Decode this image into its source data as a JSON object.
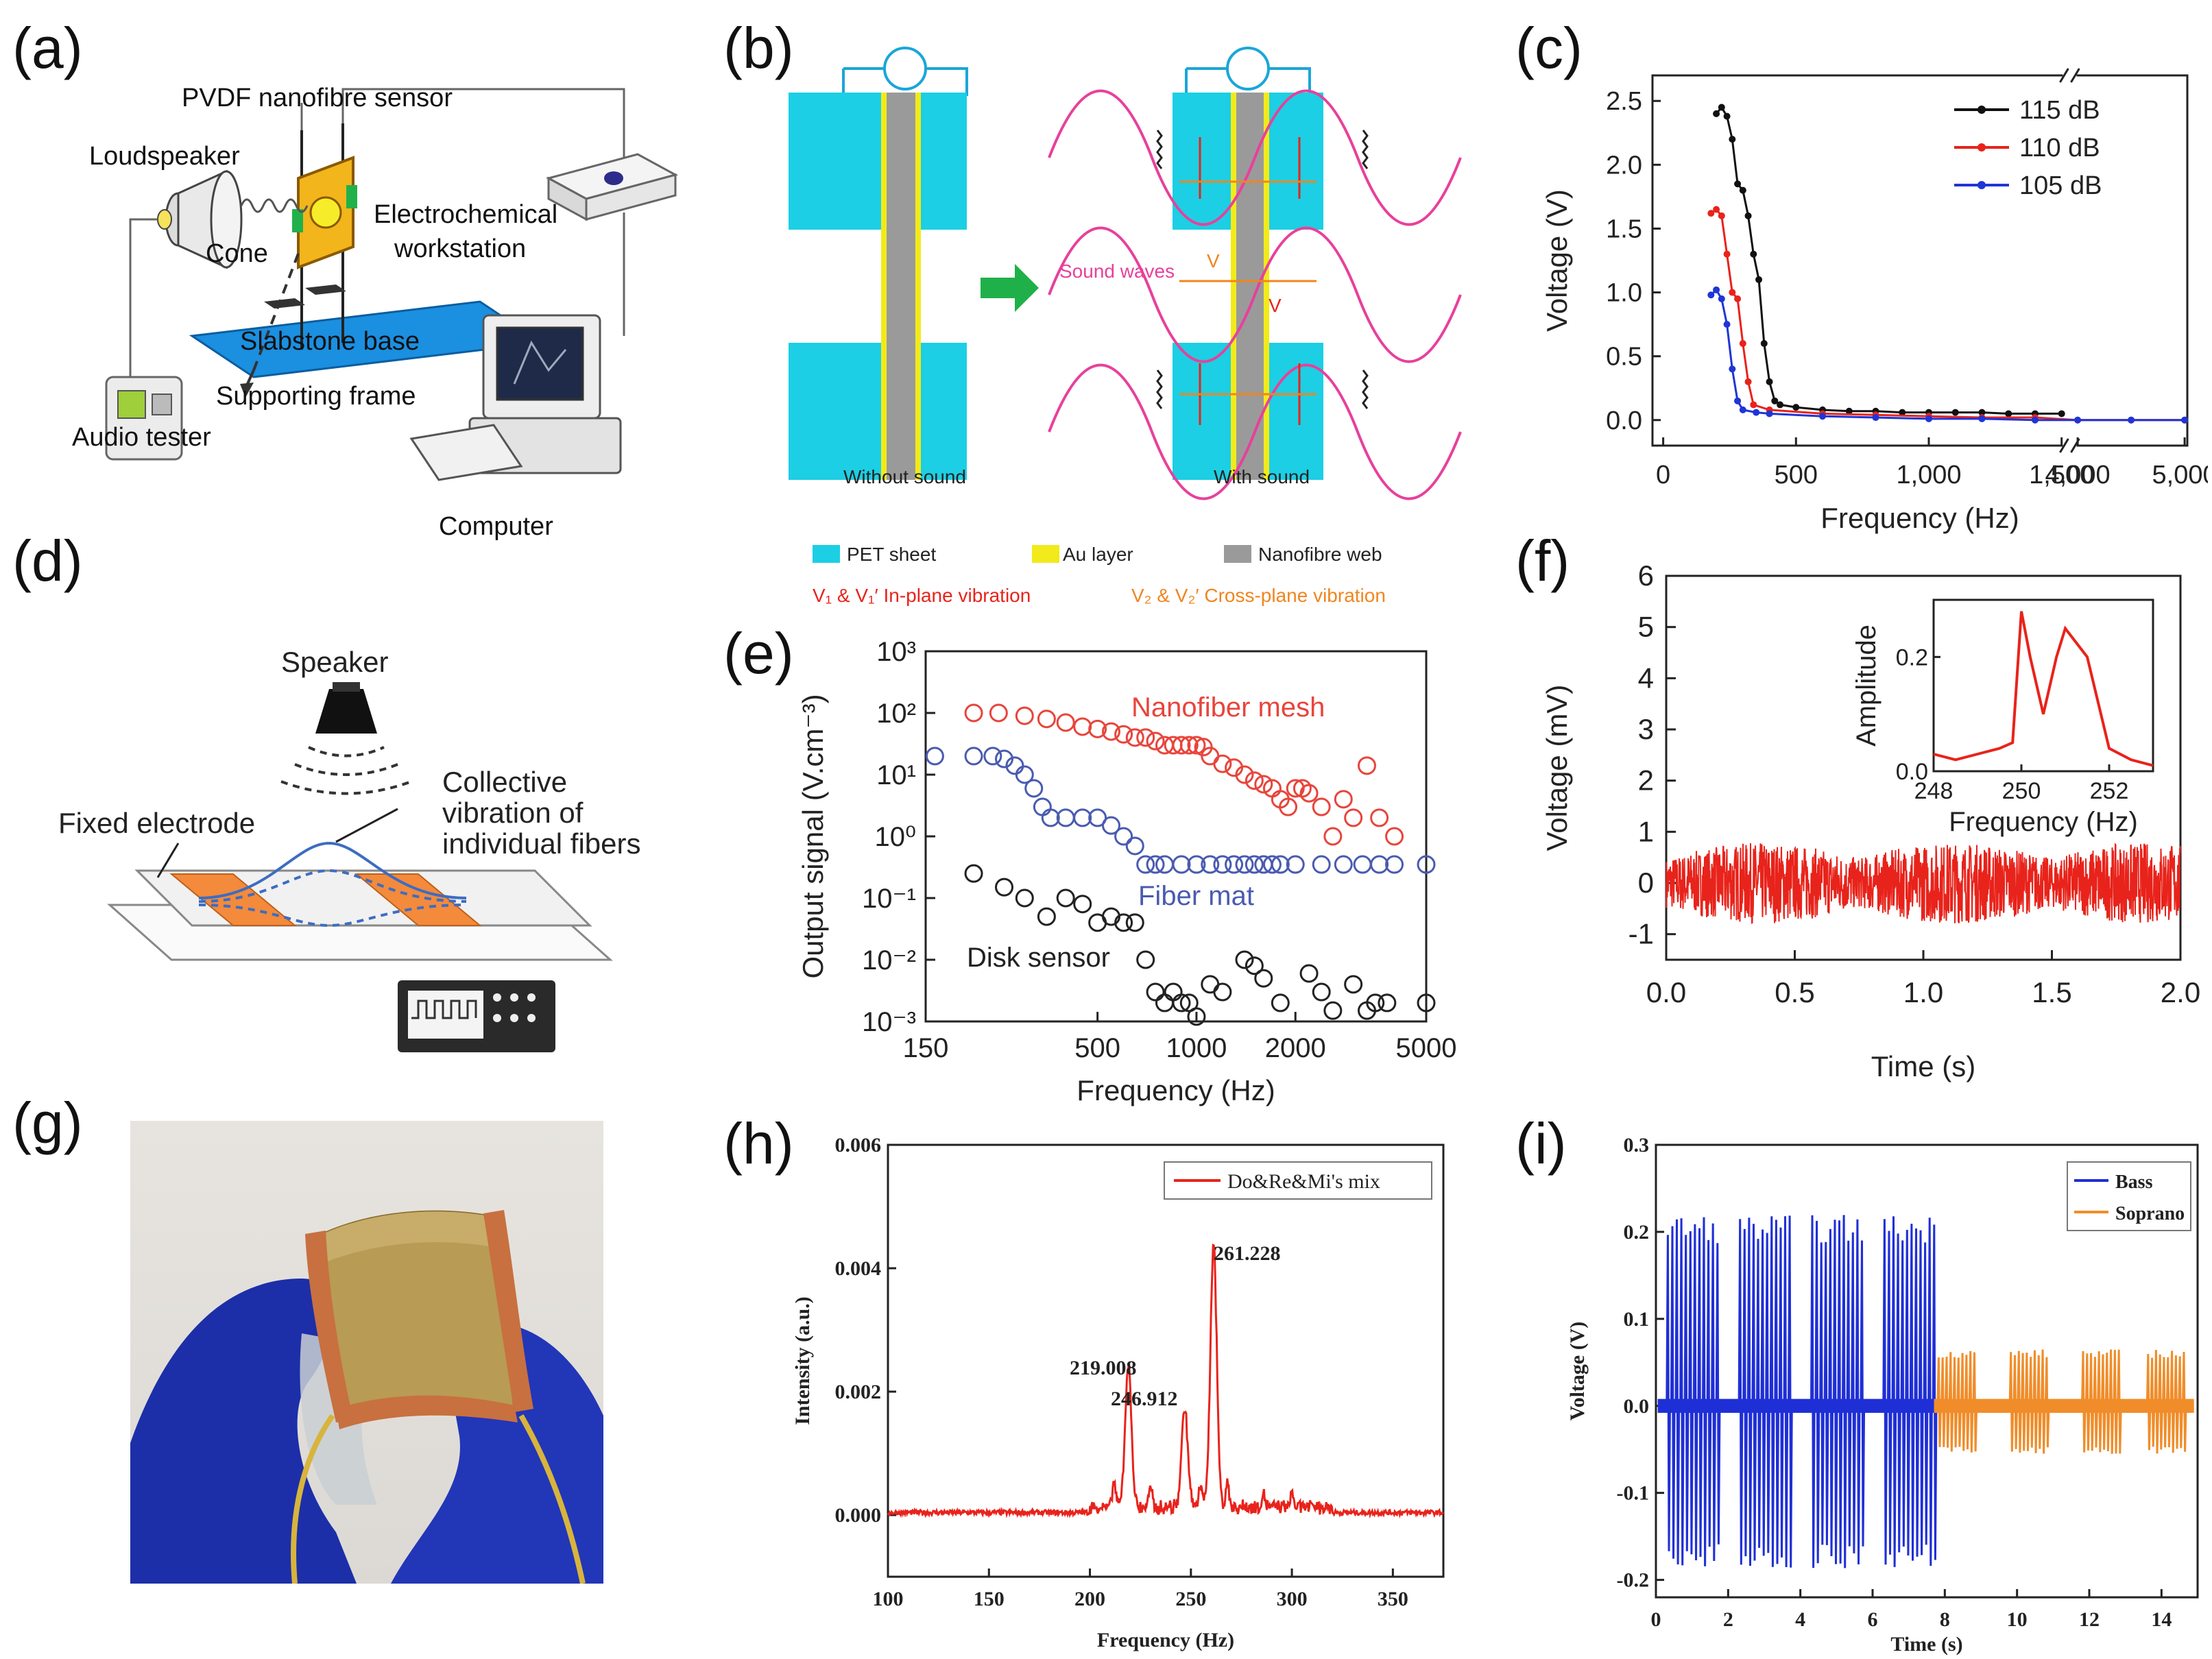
{
  "letters": {
    "a": "(a)",
    "b": "(b)",
    "c": "(c)",
    "d": "(d)",
    "e": "(e)",
    "f": "(f)",
    "g": "(g)",
    "h": "(h)",
    "i": "(i)"
  },
  "panel_a": {
    "sensor": "PVDF nanofibre sensor",
    "loudspeaker": "Loudspeaker",
    "electrochem_1": "Electrochemical",
    "electrochem_2": "workstation",
    "cone": "Cone",
    "slabstone": "Slabstone base",
    "supporting": "Supporting frame",
    "audio": "Audio tester",
    "computer": "Computer"
  },
  "panel_b": {
    "without": "Without sound",
    "with": "With sound",
    "sound_waves": "Sound waves",
    "v1": "V",
    "v2": "V",
    "legend": {
      "pet": "PET sheet",
      "au": "Au layer",
      "web": "Nanofibre web",
      "inplane": "V₁ & V₁′ In-plane vibration",
      "crossplane": "V₂ & V₂′ Cross-plane vibration"
    },
    "colors": {
      "pet": "#1ccfe4",
      "au": "#f2ea1a",
      "wave": "#e8409b",
      "arrow": "#1fb04a"
    }
  },
  "panel_c": {
    "xlabel": "Frequency (Hz)",
    "ylabel": "Voltage (V)"
  },
  "panel_d": {
    "speaker": "Speaker",
    "fixed": "Fixed electrode",
    "collective_1": "Collective",
    "collective_2": "vibration of",
    "collective_3": "individual fibers"
  },
  "panel_e": {
    "xlabel": "Frequency (Hz)",
    "ylabel": "Output signal (V.cm⁻³)",
    "nanofiber": "Nanofiber mesh",
    "fibermat": "Fiber mat",
    "disk": "Disk sensor"
  },
  "panel_f": {
    "xlabel": "Time (s)",
    "ylabel": "Voltage (mV)",
    "inset_xlabel": "Frequency (Hz)",
    "inset_ylabel": "Amplitude"
  },
  "panel_h": {
    "xlabel": "Frequency (Hz)",
    "ylabel": "Intensity (a.u.)",
    "legend": "Do&Re&Mi's mix",
    "peak1": "219.008",
    "peak2": "246.912",
    "peak3": "261.228"
  },
  "panel_i": {
    "xlabel": "Time (s)",
    "ylabel": "Voltage (V)",
    "bass": "Bass",
    "soprano": "Soprano"
  },
  "chart_data": [
    {
      "id": "c",
      "type": "line",
      "title": "",
      "xlabel": "Frequency (Hz)",
      "ylabel": "Voltage (V)",
      "xticks": [
        "0",
        "500",
        "1,000",
        "1,500",
        "4,000",
        "5,000"
      ],
      "yticks": [
        "0.0",
        "0.5",
        "1.0",
        "1.5",
        "2.0",
        "2.5"
      ],
      "xlim": [
        0,
        5000
      ],
      "ylim": [
        -0.2,
        2.7
      ],
      "axis_break": "between 1,500 and 4,000",
      "series": [
        {
          "name": "115 dB",
          "color": "#111111",
          "x": [
            200,
            220,
            240,
            260,
            280,
            300,
            320,
            340,
            360,
            380,
            400,
            420,
            440,
            500,
            600,
            700,
            800,
            900,
            1000,
            1100,
            1200,
            1300,
            1400,
            1500
          ],
          "y": [
            2.4,
            2.45,
            2.38,
            2.2,
            1.85,
            1.8,
            1.6,
            1.3,
            1.1,
            0.6,
            0.3,
            0.15,
            0.12,
            0.1,
            0.08,
            0.07,
            0.07,
            0.06,
            0.06,
            0.06,
            0.06,
            0.05,
            0.05,
            0.05
          ]
        },
        {
          "name": "110 dB",
          "color": "#e8231b",
          "x": [
            180,
            200,
            220,
            240,
            260,
            280,
            300,
            320,
            340,
            400,
            600,
            800,
            1000,
            1200,
            1400,
            4000,
            4500,
            5000
          ],
          "y": [
            1.62,
            1.65,
            1.6,
            1.3,
            1.0,
            0.95,
            0.6,
            0.3,
            0.12,
            0.08,
            0.05,
            0.04,
            0.03,
            0.02,
            0.02,
            0.0,
            0.0,
            0.0
          ]
        },
        {
          "name": "105 dB",
          "color": "#1f35d6",
          "x": [
            180,
            200,
            220,
            240,
            260,
            280,
            300,
            350,
            400,
            600,
            800,
            1000,
            1200,
            1400,
            4000,
            4500,
            5000
          ],
          "y": [
            0.98,
            1.02,
            0.95,
            0.75,
            0.4,
            0.15,
            0.08,
            0.06,
            0.05,
            0.03,
            0.02,
            0.01,
            0.01,
            0.0,
            0.0,
            0.0,
            0.0
          ]
        }
      ]
    },
    {
      "id": "e",
      "type": "scatter",
      "xlabel": "Frequency (Hz)",
      "ylabel": "Output signal (V.cm⁻³)",
      "xscale": "log",
      "yscale": "log",
      "xticks": [
        "150",
        "500",
        "1000",
        "2000",
        "5000"
      ],
      "yticks": [
        "10⁻³",
        "10⁻²",
        "10⁻¹",
        "10⁰",
        "10¹",
        "10²",
        "10³"
      ],
      "xlim": [
        150,
        5000
      ],
      "ylim": [
        0.001,
        1000
      ],
      "series": [
        {
          "name": "Nanofiber mesh",
          "color": "#e8453c",
          "x": [
            210,
            250,
            300,
            350,
            400,
            450,
            500,
            550,
            600,
            650,
            700,
            750,
            800,
            850,
            900,
            950,
            1000,
            1050,
            1100,
            1200,
            1300,
            1400,
            1500,
            1600,
            1700,
            1800,
            1900,
            2000,
            2100,
            2200,
            2400,
            2600,
            2800,
            3000,
            3300,
            3600,
            4000
          ],
          "y": [
            100,
            100,
            90,
            80,
            70,
            60,
            55,
            50,
            45,
            40,
            40,
            35,
            30,
            30,
            30,
            30,
            30,
            28,
            20,
            15,
            13,
            10,
            8,
            7,
            6,
            4,
            3,
            6,
            6,
            5,
            3,
            1,
            4,
            2,
            14,
            2,
            1
          ]
        },
        {
          "name": "Fiber mat",
          "color": "#4a5bb0",
          "x": [
            160,
            210,
            240,
            260,
            280,
            300,
            320,
            340,
            360,
            400,
            450,
            500,
            550,
            600,
            650,
            700,
            750,
            800,
            900,
            1000,
            1100,
            1200,
            1300,
            1400,
            1500,
            1600,
            1700,
            1800,
            2000,
            2400,
            2800,
            3200,
            3600,
            4000,
            5000
          ],
          "y": [
            20,
            20,
            20,
            18,
            14,
            10,
            6,
            3,
            2,
            2,
            2,
            2,
            1.5,
            1,
            0.7,
            0.35,
            0.35,
            0.35,
            0.35,
            0.35,
            0.35,
            0.35,
            0.35,
            0.35,
            0.35,
            0.35,
            0.35,
            0.35,
            0.35,
            0.35,
            0.35,
            0.35,
            0.35,
            0.35,
            0.35
          ]
        },
        {
          "name": "Disk sensor",
          "color": "#222222",
          "x": [
            210,
            260,
            300,
            350,
            400,
            450,
            500,
            550,
            600,
            650,
            700,
            750,
            800,
            850,
            900,
            950,
            1000,
            1100,
            1200,
            1400,
            1500,
            1600,
            1800,
            2200,
            2400,
            2600,
            3000,
            3300,
            3500,
            3800,
            5000
          ],
          "y": [
            0.25,
            0.15,
            0.1,
            0.05,
            0.1,
            0.08,
            0.04,
            0.05,
            0.04,
            0.04,
            0.01,
            0.003,
            0.002,
            0.003,
            0.002,
            0.002,
            0.0012,
            0.004,
            0.003,
            0.01,
            0.008,
            0.005,
            0.002,
            0.006,
            0.003,
            0.0015,
            0.004,
            0.0015,
            0.002,
            0.002,
            0.002
          ]
        }
      ]
    },
    {
      "id": "f",
      "type": "line",
      "xlabel": "Time (s)",
      "ylabel": "Voltage (mV)",
      "xticks": [
        "0.0",
        "0.5",
        "1.0",
        "1.5",
        "2.0"
      ],
      "yticks": [
        "-1",
        "0",
        "1",
        "2",
        "3",
        "4",
        "5",
        "6"
      ],
      "xlim": [
        0,
        2
      ],
      "ylim": [
        -1.5,
        6
      ],
      "series": [
        {
          "name": "signal",
          "color": "#e8231b",
          "amplitude": 0.8,
          "noise": "dense oscillation around 0"
        }
      ],
      "inset": {
        "xlabel": "Frequency (Hz)",
        "ylabel": "Amplitude",
        "xticks": [
          "248",
          "250",
          "252"
        ],
        "yticks": [
          "0.0",
          "0.2"
        ],
        "xlim": [
          248,
          253
        ],
        "ylim": [
          0,
          0.3
        ],
        "x": [
          248,
          248.5,
          249,
          249.5,
          249.8,
          250,
          250.2,
          250.5,
          250.8,
          251,
          251.5,
          252,
          252.5,
          253
        ],
        "y": [
          0.03,
          0.02,
          0.03,
          0.04,
          0.05,
          0.28,
          0.2,
          0.1,
          0.2,
          0.25,
          0.2,
          0.04,
          0.02,
          0.01
        ]
      }
    },
    {
      "id": "h",
      "type": "line",
      "xlabel": "Frequency (Hz)",
      "ylabel": "Intensity (a.u.)",
      "xticks": [
        "100",
        "150",
        "200",
        "250",
        "300",
        "350"
      ],
      "yticks": [
        "0.000",
        "0.002",
        "0.004",
        "0.006"
      ],
      "xlim": [
        100,
        375
      ],
      "ylim": [
        -0.001,
        0.006
      ],
      "series": [
        {
          "name": "Do&Re&Mi's mix",
          "color": "#e8231b",
          "peaks": [
            {
              "x": 219.008,
              "y": 0.0023
            },
            {
              "x": 246.912,
              "y": 0.0016
            },
            {
              "x": 261.228,
              "y": 0.0043
            }
          ]
        }
      ]
    },
    {
      "id": "i",
      "type": "line",
      "xlabel": "Time (s)",
      "ylabel": "Voltage (V)",
      "xticks": [
        "0",
        "2",
        "4",
        "6",
        "8",
        "10",
        "12",
        "14"
      ],
      "yticks": [
        "-0.2",
        "-0.1",
        "0.0",
        "0.1",
        "0.2",
        "0.3"
      ],
      "xlim": [
        0,
        15
      ],
      "ylim": [
        -0.22,
        0.3
      ],
      "series": [
        {
          "name": "Bass",
          "color": "#1f2fd6",
          "amplitude": 0.22,
          "bursts_start": [
            0.3,
            2.3,
            4.3,
            6.3
          ],
          "burst_len": 1.5
        },
        {
          "name": "Soprano",
          "color": "#f08d2a",
          "amplitude": 0.065,
          "bursts_start": [
            7.8,
            9.8,
            11.8,
            13.6
          ],
          "burst_len": 1.1
        }
      ]
    }
  ]
}
